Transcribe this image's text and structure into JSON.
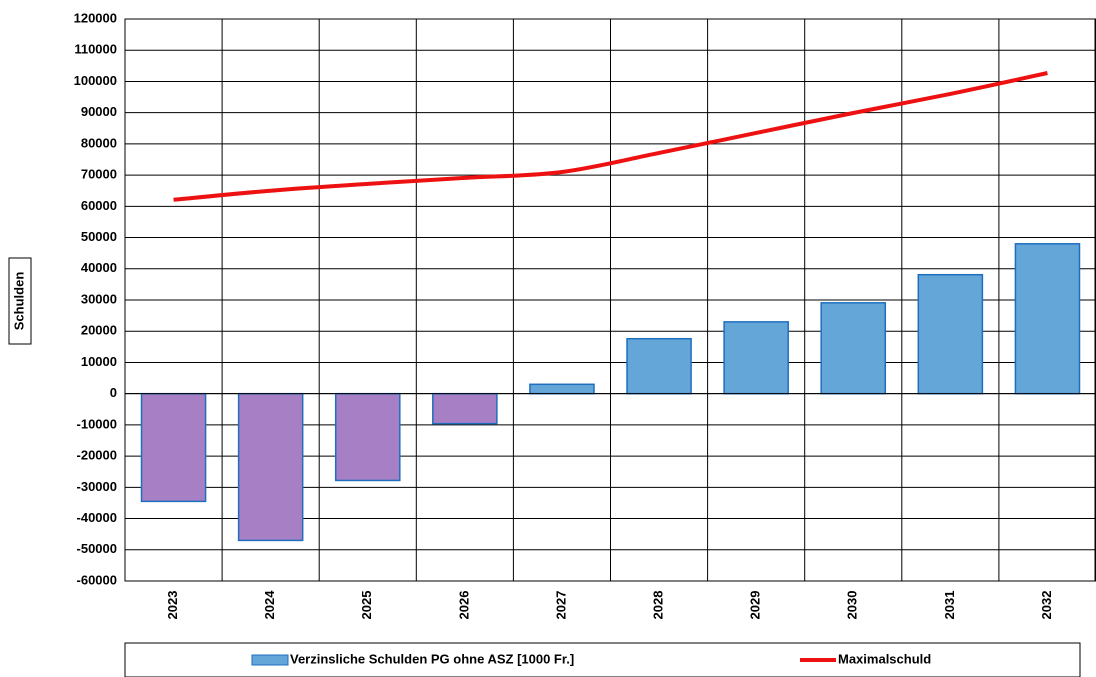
{
  "chart_data": {
    "type": "bar",
    "y_label": "Schulden",
    "categories": [
      "2023",
      "2024",
      "2025",
      "2026",
      "2027",
      "2028",
      "2029",
      "2030",
      "2031",
      "2032"
    ],
    "series": [
      {
        "name": "Verzinsliche Schulden PG ohne ASZ [1000 Fr.]",
        "type": "bar",
        "color": "#64a6d8",
        "negative_color": "#a77fc4",
        "edge_color": "#1f6fbf",
        "values": [
          -34500,
          -47000,
          -27800,
          -9600,
          3000,
          17600,
          23000,
          29100,
          38100,
          48000
        ]
      },
      {
        "name": "Maximalschuld",
        "type": "line",
        "color": "#ee1111",
        "values": [
          62100,
          65000,
          67200,
          69100,
          71000,
          77100,
          83500,
          89900,
          96000,
          102700
        ]
      }
    ],
    "ylim": [
      -60000,
      120000
    ],
    "yticks": [
      -60000,
      -50000,
      -40000,
      -30000,
      -20000,
      -10000,
      0,
      10000,
      20000,
      30000,
      40000,
      50000,
      60000,
      70000,
      80000,
      90000,
      100000,
      110000,
      120000
    ],
    "grid": true,
    "legend": "bottom"
  }
}
